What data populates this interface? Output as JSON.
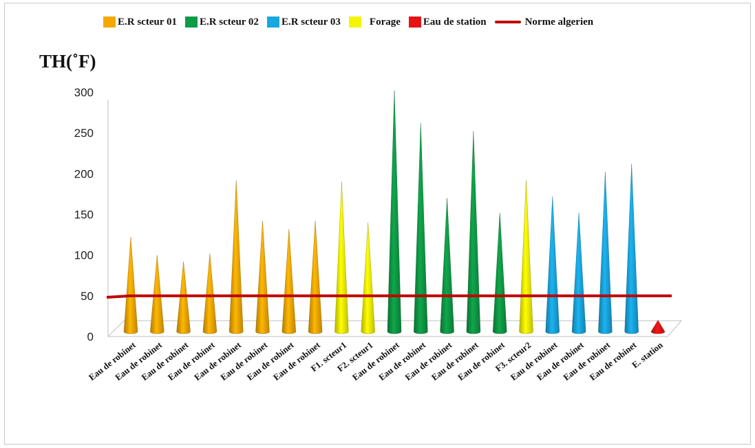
{
  "chart_data": {
    "type": "bar",
    "title": "",
    "ylabel": "TH(˚F)",
    "xlabel": "",
    "ylim": [
      0,
      300
    ],
    "yticks": [
      0,
      50,
      100,
      150,
      200,
      250,
      300
    ],
    "categories": [
      "Eau de robinet",
      "Eau de robinet",
      "Eau de robinet",
      "Eau de robinet",
      "Eau de robinet",
      "Eau de robinet",
      "Eau de robinet",
      "Eau de robinet",
      "F1. scteur1",
      "F2. scteur1",
      "Eau de robinet",
      "Eau de robinet",
      "Eau de robinet",
      "Eau de robinet",
      "Eau de robinet",
      "F3. scteur2",
      "Eau de robinet",
      "Eau de robinet",
      "Eau de robinet",
      "Eau de robinet",
      "E. station"
    ],
    "values": [
      122,
      100,
      92,
      102,
      192,
      142,
      132,
      142,
      190,
      140,
      302,
      262,
      170,
      252,
      152,
      192,
      172,
      152,
      202,
      212,
      20
    ],
    "groups": [
      "s1",
      "s1",
      "s1",
      "s1",
      "s1",
      "s1",
      "s1",
      "s1",
      "forage",
      "forage",
      "s2",
      "s2",
      "s2",
      "s2",
      "s2",
      "forage",
      "s3",
      "s3",
      "s3",
      "s3",
      "station"
    ],
    "series": [
      {
        "key": "s1",
        "name": "E.R scteur 01",
        "color": "#F5A900"
      },
      {
        "key": "s2",
        "name": "E.R scteur 02",
        "color": "#0E9B45"
      },
      {
        "key": "s3",
        "name": "E.R scteur 03",
        "color": "#19A7E0"
      },
      {
        "key": "forage",
        "name": "Forage",
        "color": "#F5F500"
      },
      {
        "key": "station",
        "name": "Eau de station",
        "color": "#E51414"
      }
    ],
    "reference_line": {
      "name": "Norme algerien",
      "value": 50,
      "color": "#C00000"
    },
    "legend_position": "top",
    "grid": false
  }
}
